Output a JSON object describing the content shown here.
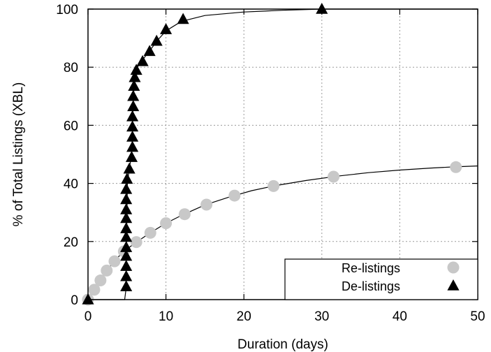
{
  "chart_data": {
    "type": "line",
    "title": "",
    "xlabel": "Duration (days)",
    "ylabel": "% of Total Listings (XBL)",
    "xlim": [
      0,
      50
    ],
    "ylim": [
      0,
      100
    ],
    "xticks": [
      "0",
      "10",
      "20",
      "30",
      "40",
      "50"
    ],
    "yticks": [
      "0",
      "20",
      "40",
      "60",
      "80",
      "100"
    ],
    "grid": true,
    "legend_position": "bottom-right",
    "colors": {
      "relistings": "#c8c8c8",
      "delistings": "#000000"
    },
    "series": [
      {
        "name": "Re-listings",
        "marker": "circle",
        "points": [
          [
            0,
            0
          ],
          [
            0.8,
            3.4
          ],
          [
            1.6,
            6.6
          ],
          [
            2.4,
            10.0
          ],
          [
            3.4,
            13.2
          ],
          [
            4.6,
            16.6
          ],
          [
            6.2,
            19.8
          ],
          [
            8.0,
            23.0
          ],
          [
            10.0,
            26.3
          ],
          [
            12.4,
            29.4
          ],
          [
            15.2,
            32.7
          ],
          [
            18.8,
            35.8
          ],
          [
            23.8,
            39.1
          ],
          [
            31.5,
            42.3
          ],
          [
            47.2,
            45.6
          ]
        ],
        "curve": [
          [
            0,
            0
          ],
          [
            1,
            4.2
          ],
          [
            2,
            8.4
          ],
          [
            3,
            12.0
          ],
          [
            4,
            15.0
          ],
          [
            5,
            17.4
          ],
          [
            6,
            19.4
          ],
          [
            8,
            23.0
          ],
          [
            10,
            26.3
          ],
          [
            12,
            29.0
          ],
          [
            15,
            32.6
          ],
          [
            18,
            35.2
          ],
          [
            21,
            37.5
          ],
          [
            24,
            39.2
          ],
          [
            28,
            41.0
          ],
          [
            32,
            42.5
          ],
          [
            36,
            43.7
          ],
          [
            40,
            44.6
          ],
          [
            44,
            45.3
          ],
          [
            47,
            45.7
          ],
          [
            50,
            46.0
          ]
        ]
      },
      {
        "name": "De-listings",
        "marker": "triangle",
        "points": [
          [
            0,
            0
          ],
          [
            4.9,
            4.5
          ],
          [
            4.9,
            8.0
          ],
          [
            4.9,
            11.5
          ],
          [
            4.9,
            15.0
          ],
          [
            4.9,
            18.0
          ],
          [
            4.9,
            21.5
          ],
          [
            4.9,
            24.5
          ],
          [
            4.9,
            28.0
          ],
          [
            4.9,
            31.0
          ],
          [
            4.9,
            34.5
          ],
          [
            4.9,
            38.0
          ],
          [
            5.0,
            41.5
          ],
          [
            5.3,
            45.0
          ],
          [
            5.6,
            49.0
          ],
          [
            5.7,
            52.5
          ],
          [
            5.7,
            56.0
          ],
          [
            5.7,
            59.5
          ],
          [
            5.7,
            63.0
          ],
          [
            5.8,
            66.5
          ],
          [
            5.8,
            70.0
          ],
          [
            5.9,
            73.5
          ],
          [
            6.0,
            76.5
          ],
          [
            6.2,
            79.0
          ],
          [
            7.0,
            82.0
          ],
          [
            7.9,
            85.5
          ],
          [
            8.8,
            89.0
          ],
          [
            10.0,
            93.0
          ],
          [
            12.2,
            96.5
          ],
          [
            30.0,
            100.0
          ]
        ],
        "curve": [
          [
            0,
            0
          ],
          [
            4.7,
            0
          ],
          [
            4.85,
            3
          ],
          [
            4.95,
            20
          ],
          [
            5.05,
            40
          ],
          [
            5.3,
            45
          ],
          [
            5.6,
            50
          ],
          [
            5.7,
            58
          ],
          [
            5.8,
            68
          ],
          [
            5.95,
            75
          ],
          [
            6.2,
            79.5
          ],
          [
            7.0,
            82.5
          ],
          [
            8.0,
            86
          ],
          [
            9.0,
            89.5
          ],
          [
            10.0,
            92.5
          ],
          [
            12.0,
            95.8
          ],
          [
            15.0,
            97.8
          ],
          [
            20.0,
            99.0
          ],
          [
            25.0,
            99.6
          ],
          [
            30.0,
            100
          ],
          [
            50.0,
            100
          ]
        ]
      }
    ]
  }
}
